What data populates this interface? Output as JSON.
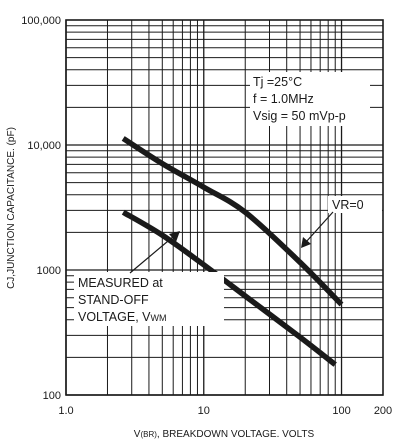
{
  "chart_data": {
    "type": "line",
    "title": "",
    "xlabel_prefix": "V",
    "xlabel_sub": "(BR)",
    "xlabel_rest": ", BREAKDOWN VOLTAGE. VOLTS",
    "ylabel": "CJ,JUNCTION CAPACITANCE. (pF)",
    "x_scale": "log",
    "y_scale": "log",
    "xlim": [
      1,
      200
    ],
    "ylim": [
      100,
      100000
    ],
    "grid": true,
    "x_tick_labels": [
      {
        "value": 1,
        "label": "1.0"
      },
      {
        "value": 10,
        "label": "10"
      },
      {
        "value": 100,
        "label": "100"
      },
      {
        "value": 200,
        "label": "200"
      }
    ],
    "y_tick_labels": [
      {
        "value": 100,
        "label": "100"
      },
      {
        "value": 1000,
        "label": "1000"
      },
      {
        "value": 10000,
        "label": "10,000"
      },
      {
        "value": 100000,
        "label": "100,000"
      }
    ],
    "series": [
      {
        "name": "VR=0",
        "points": [
          [
            2.6,
            11300
          ],
          [
            5,
            7100
          ],
          [
            10,
            4600
          ],
          [
            20,
            2900
          ],
          [
            50,
            1150
          ],
          [
            100,
            530
          ]
        ]
      },
      {
        "name": "MEASURED at STAND-OFF VOLTAGE, VWM",
        "points": [
          [
            2.6,
            2900
          ],
          [
            5,
            1900
          ],
          [
            10,
            1100
          ],
          [
            20,
            620
          ],
          [
            50,
            290
          ],
          [
            90,
            175
          ]
        ]
      }
    ],
    "conditions": [
      "Tj =25°C",
      "f = 1.0MHz",
      "Vsig = 50 mVp-p"
    ],
    "annotations": {
      "vr0": "VR=0",
      "measured_line1": "MEASURED at",
      "measured_line2": "STAND-OFF",
      "measured_line3_prefix": "VOLTAGE, V",
      "measured_line3_sub": "WM"
    }
  }
}
